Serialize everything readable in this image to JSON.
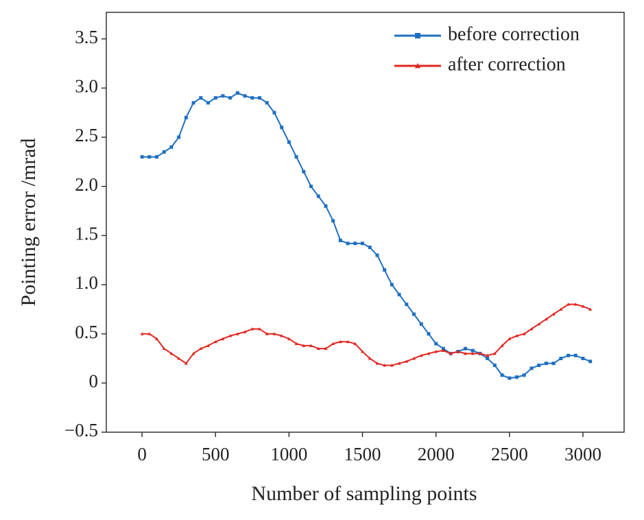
{
  "chart_data": {
    "type": "line",
    "x_label": "Number of sampling points",
    "y_label": "Pointing error /mrad",
    "x": [
      0,
      50,
      100,
      150,
      200,
      250,
      300,
      350,
      400,
      450,
      500,
      550,
      600,
      650,
      700,
      750,
      800,
      850,
      900,
      950,
      1000,
      1050,
      1100,
      1150,
      1200,
      1250,
      1300,
      1350,
      1400,
      1450,
      1500,
      1550,
      1600,
      1650,
      1700,
      1750,
      1800,
      1850,
      1900,
      1950,
      2000,
      2050,
      2100,
      2150,
      2200,
      2250,
      2300,
      2350,
      2400,
      2450,
      2500,
      2550,
      2600,
      2650,
      2700,
      2750,
      2800,
      2850,
      2900,
      2950,
      3000,
      3050
    ],
    "series": [
      {
        "name": "before correction",
        "color": "#1f6fc0",
        "marker": "square",
        "values": [
          2.3,
          2.3,
          2.3,
          2.35,
          2.4,
          2.5,
          2.7,
          2.85,
          2.9,
          2.85,
          2.9,
          2.92,
          2.9,
          2.95,
          2.92,
          2.9,
          2.9,
          2.85,
          2.75,
          2.6,
          2.45,
          2.3,
          2.15,
          2.0,
          1.9,
          1.8,
          1.65,
          1.45,
          1.42,
          1.42,
          1.42,
          1.38,
          1.3,
          1.15,
          1.0,
          0.9,
          0.8,
          0.7,
          0.6,
          0.5,
          0.4,
          0.35,
          0.3,
          0.32,
          0.35,
          0.33,
          0.3,
          0.25,
          0.18,
          0.08,
          0.05,
          0.06,
          0.08,
          0.15,
          0.18,
          0.2,
          0.2,
          0.25,
          0.28,
          0.28,
          0.25,
          0.22
        ]
      },
      {
        "name": "after correction",
        "color": "#e0261f",
        "marker": "triangle",
        "values": [
          0.5,
          0.5,
          0.45,
          0.35,
          0.3,
          0.25,
          0.2,
          0.3,
          0.35,
          0.38,
          0.42,
          0.45,
          0.48,
          0.5,
          0.52,
          0.55,
          0.55,
          0.5,
          0.5,
          0.48,
          0.45,
          0.4,
          0.38,
          0.38,
          0.35,
          0.35,
          0.4,
          0.42,
          0.42,
          0.4,
          0.32,
          0.25,
          0.2,
          0.18,
          0.18,
          0.2,
          0.22,
          0.25,
          0.28,
          0.3,
          0.32,
          0.33,
          0.3,
          0.32,
          0.3,
          0.3,
          0.3,
          0.28,
          0.3,
          0.38,
          0.45,
          0.48,
          0.5,
          0.55,
          0.6,
          0.65,
          0.7,
          0.75,
          0.8,
          0.8,
          0.78,
          0.75
        ]
      }
    ],
    "xlim": [
      -243,
      3280
    ],
    "ylim": [
      -0.5,
      3.77
    ],
    "xticks": [
      0,
      500,
      1000,
      1500,
      2000,
      2500,
      3000
    ],
    "yticks": [
      {
        "value": -0.5,
        "label": "−0.5"
      },
      0,
      0.5,
      {
        "value": 1,
        "label": "1.0"
      },
      1.5,
      {
        "value": 2,
        "label": "2.0"
      },
      2.5,
      {
        "value": 3,
        "label": "3.0"
      },
      3.5
    ],
    "legend": "upper right",
    "grid": false
  }
}
